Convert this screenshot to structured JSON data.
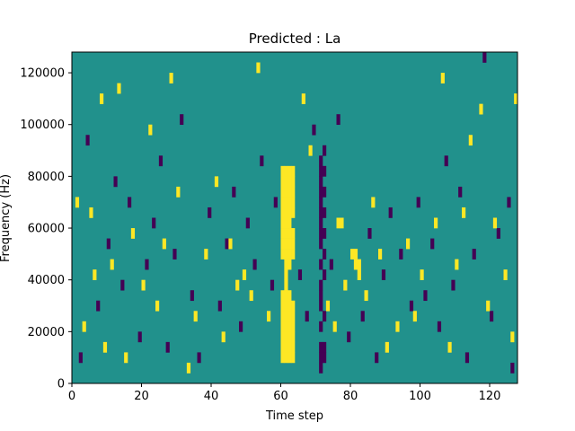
{
  "chart_data": {
    "type": "heatmap",
    "title": "Predicted : La",
    "xlabel": "Time step",
    "ylabel": "Frequency (Hz)",
    "xlim": [
      0,
      128
    ],
    "ylim": [
      0,
      128000
    ],
    "x_ticks": [
      0,
      20,
      40,
      60,
      80,
      100,
      120
    ],
    "y_ticks": [
      0,
      20000,
      40000,
      60000,
      80000,
      100000,
      120000
    ],
    "x_tick_labels": [
      "0",
      "20",
      "40",
      "60",
      "80",
      "100",
      "120"
    ],
    "y_tick_labels": [
      "0",
      "20000",
      "40000",
      "60000",
      "80000",
      "100000",
      "120000"
    ],
    "grid": false,
    "colormap": "viridis",
    "background_value": 0,
    "colors": {
      "background": "#21918c",
      "high": "#fde725",
      "low": "#440154"
    },
    "cell_height_hz": 4000,
    "high_cells": [
      [
        60,
        8000
      ],
      [
        60,
        12000
      ],
      [
        60,
        16000
      ],
      [
        60,
        20000
      ],
      [
        60,
        24000
      ],
      [
        60,
        28000
      ],
      [
        60,
        32000
      ],
      [
        60,
        48000
      ],
      [
        60,
        52000
      ],
      [
        60,
        56000
      ],
      [
        60,
        60000
      ],
      [
        60,
        64000
      ],
      [
        60,
        68000
      ],
      [
        60,
        72000
      ],
      [
        60,
        76000
      ],
      [
        60,
        80000
      ],
      [
        61,
        8000
      ],
      [
        61,
        12000
      ],
      [
        61,
        16000
      ],
      [
        61,
        20000
      ],
      [
        61,
        24000
      ],
      [
        61,
        28000
      ],
      [
        61,
        32000
      ],
      [
        61,
        36000
      ],
      [
        61,
        40000
      ],
      [
        61,
        44000
      ],
      [
        61,
        48000
      ],
      [
        61,
        52000
      ],
      [
        61,
        56000
      ],
      [
        61,
        60000
      ],
      [
        61,
        64000
      ],
      [
        61,
        68000
      ],
      [
        61,
        72000
      ],
      [
        61,
        76000
      ],
      [
        61,
        80000
      ],
      [
        62,
        8000
      ],
      [
        62,
        12000
      ],
      [
        62,
        16000
      ],
      [
        62,
        20000
      ],
      [
        62,
        24000
      ],
      [
        62,
        28000
      ],
      [
        62,
        32000
      ],
      [
        62,
        44000
      ],
      [
        62,
        48000
      ],
      [
        62,
        52000
      ],
      [
        62,
        56000
      ],
      [
        62,
        60000
      ],
      [
        62,
        64000
      ],
      [
        62,
        68000
      ],
      [
        62,
        72000
      ],
      [
        62,
        76000
      ],
      [
        62,
        80000
      ],
      [
        63,
        8000
      ],
      [
        63,
        12000
      ],
      [
        63,
        16000
      ],
      [
        63,
        20000
      ],
      [
        63,
        24000
      ],
      [
        63,
        28000
      ],
      [
        63,
        48000
      ],
      [
        63,
        52000
      ],
      [
        63,
        56000
      ],
      [
        63,
        64000
      ],
      [
        63,
        68000
      ],
      [
        63,
        72000
      ],
      [
        63,
        76000
      ],
      [
        63,
        80000
      ],
      [
        76,
        60000
      ],
      [
        77,
        60000
      ],
      [
        80,
        48000
      ],
      [
        81,
        48000
      ],
      [
        81,
        44000
      ],
      [
        82,
        44000
      ],
      [
        82,
        40000
      ],
      [
        1,
        68000
      ],
      [
        3,
        20000
      ],
      [
        5,
        64000
      ],
      [
        6,
        40000
      ],
      [
        8,
        108000
      ],
      [
        9,
        12000
      ],
      [
        11,
        44000
      ],
      [
        13,
        112000
      ],
      [
        15,
        8000
      ],
      [
        17,
        56000
      ],
      [
        20,
        36000
      ],
      [
        22,
        96000
      ],
      [
        24,
        28000
      ],
      [
        26,
        52000
      ],
      [
        28,
        116000
      ],
      [
        30,
        72000
      ],
      [
        33,
        4000
      ],
      [
        35,
        24000
      ],
      [
        38,
        48000
      ],
      [
        41,
        76000
      ],
      [
        43,
        16000
      ],
      [
        45,
        52000
      ],
      [
        47,
        36000
      ],
      [
        49,
        40000
      ],
      [
        51,
        32000
      ],
      [
        53,
        120000
      ],
      [
        56,
        24000
      ],
      [
        66,
        108000
      ],
      [
        68,
        88000
      ],
      [
        73,
        28000
      ],
      [
        75,
        20000
      ],
      [
        78,
        36000
      ],
      [
        84,
        32000
      ],
      [
        86,
        68000
      ],
      [
        88,
        48000
      ],
      [
        90,
        12000
      ],
      [
        93,
        20000
      ],
      [
        96,
        52000
      ],
      [
        98,
        24000
      ],
      [
        100,
        40000
      ],
      [
        104,
        60000
      ],
      [
        106,
        116000
      ],
      [
        108,
        12000
      ],
      [
        110,
        44000
      ],
      [
        112,
        64000
      ],
      [
        114,
        92000
      ],
      [
        117,
        104000
      ],
      [
        119,
        28000
      ],
      [
        121,
        60000
      ],
      [
        124,
        40000
      ],
      [
        126,
        16000
      ],
      [
        127,
        108000
      ]
    ],
    "low_cells": [
      [
        71,
        4000
      ],
      [
        71,
        8000
      ],
      [
        71,
        12000
      ],
      [
        71,
        20000
      ],
      [
        71,
        28000
      ],
      [
        71,
        32000
      ],
      [
        71,
        36000
      ],
      [
        71,
        44000
      ],
      [
        71,
        52000
      ],
      [
        71,
        56000
      ],
      [
        71,
        60000
      ],
      [
        71,
        64000
      ],
      [
        71,
        68000
      ],
      [
        71,
        72000
      ],
      [
        71,
        76000
      ],
      [
        71,
        80000
      ],
      [
        71,
        84000
      ],
      [
        72,
        8000
      ],
      [
        72,
        12000
      ],
      [
        72,
        24000
      ],
      [
        72,
        40000
      ],
      [
        72,
        48000
      ],
      [
        72,
        56000
      ],
      [
        72,
        64000
      ],
      [
        72,
        72000
      ],
      [
        72,
        80000
      ],
      [
        72,
        88000
      ],
      [
        2,
        8000
      ],
      [
        4,
        92000
      ],
      [
        7,
        28000
      ],
      [
        10,
        52000
      ],
      [
        12,
        76000
      ],
      [
        14,
        36000
      ],
      [
        16,
        68000
      ],
      [
        19,
        16000
      ],
      [
        21,
        44000
      ],
      [
        23,
        60000
      ],
      [
        25,
        84000
      ],
      [
        27,
        12000
      ],
      [
        29,
        48000
      ],
      [
        31,
        100000
      ],
      [
        34,
        32000
      ],
      [
        36,
        8000
      ],
      [
        39,
        64000
      ],
      [
        42,
        28000
      ],
      [
        44,
        52000
      ],
      [
        46,
        72000
      ],
      [
        48,
        20000
      ],
      [
        50,
        60000
      ],
      [
        52,
        44000
      ],
      [
        54,
        84000
      ],
      [
        57,
        36000
      ],
      [
        58,
        68000
      ],
      [
        65,
        40000
      ],
      [
        67,
        24000
      ],
      [
        69,
        96000
      ],
      [
        74,
        44000
      ],
      [
        76,
        100000
      ],
      [
        79,
        16000
      ],
      [
        83,
        24000
      ],
      [
        85,
        56000
      ],
      [
        87,
        8000
      ],
      [
        89,
        40000
      ],
      [
        91,
        64000
      ],
      [
        94,
        48000
      ],
      [
        97,
        28000
      ],
      [
        99,
        68000
      ],
      [
        101,
        32000
      ],
      [
        103,
        52000
      ],
      [
        105,
        20000
      ],
      [
        107,
        84000
      ],
      [
        109,
        36000
      ],
      [
        111,
        72000
      ],
      [
        113,
        8000
      ],
      [
        115,
        48000
      ],
      [
        118,
        124000
      ],
      [
        120,
        24000
      ],
      [
        122,
        56000
      ],
      [
        125,
        68000
      ],
      [
        126,
        4000
      ]
    ]
  }
}
